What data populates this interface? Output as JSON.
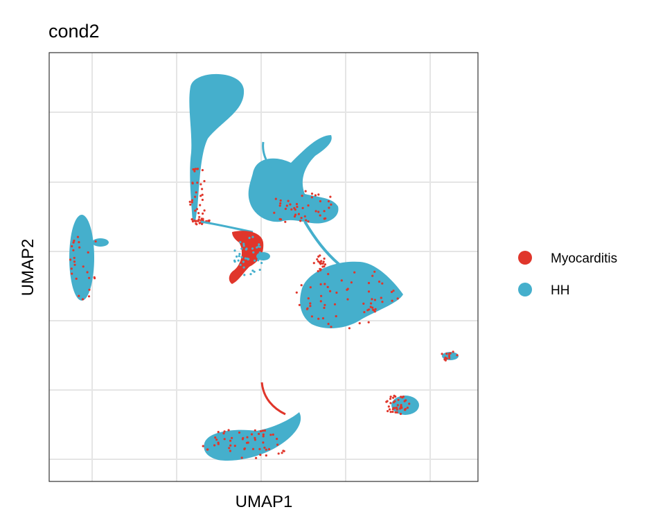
{
  "chart_data": {
    "type": "scatter",
    "title": "cond2",
    "xlabel": "UMAP1",
    "ylabel": "UMAP2",
    "x_ticks_labeled": false,
    "y_ticks_labeled": false,
    "grid": true,
    "legend_placement": "right",
    "series": [
      {
        "name": "Myocarditis",
        "color": "#E0362B"
      },
      {
        "name": "HH",
        "color": "#45AFCC"
      }
    ],
    "clusters": [
      {
        "center": [
          -7.5,
          1.0
        ],
        "size": "medium",
        "composition": "HH"
      },
      {
        "center": [
          -3.0,
          6.5
        ],
        "size": "large",
        "composition": "HH with Myocarditis on edges"
      },
      {
        "center": [
          -3.5,
          3.0
        ],
        "size": "medium",
        "composition": "mostly HH"
      },
      {
        "center": [
          -1.0,
          1.8
        ],
        "size": "small",
        "composition": "Myocarditis-rich bridge"
      },
      {
        "center": [
          0.5,
          3.5
        ],
        "size": "large",
        "composition": "HH"
      },
      {
        "center": [
          2.5,
          0.5
        ],
        "size": "large",
        "composition": "HH with Myocarditis outline"
      },
      {
        "center": [
          7.0,
          -1.5
        ],
        "size": "tiny",
        "composition": "mixed"
      },
      {
        "center": [
          5.0,
          -3.5
        ],
        "size": "small",
        "composition": "mixed Myocarditis and HH"
      },
      {
        "center": [
          -0.5,
          -5.5
        ],
        "size": "medium",
        "composition": "HH with Myocarditis edges"
      }
    ]
  }
}
